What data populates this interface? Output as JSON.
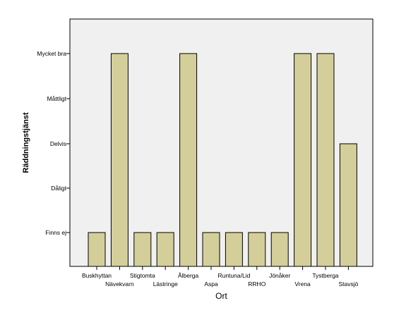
{
  "chart_data": {
    "type": "bar",
    "xlabel": "Ort",
    "ylabel": "Räddningstjänst",
    "y_categories": [
      "Finns ej",
      "Dåligt",
      "Delvis",
      "Måttligt",
      "Mycket bra"
    ],
    "categories": [
      "Buskhyttan",
      "Nävekvarn",
      "Stigtomta",
      "Lästringe",
      "Ålberga",
      "Aspa",
      "Runtuna/Lid",
      "RRHO",
      "Jönåker",
      "Vrena",
      "Tystberga",
      "Stavsjö"
    ],
    "values": [
      "Finns ej",
      "Mycket bra",
      "Finns ej",
      "Finns ej",
      "Mycket bra",
      "Finns ej",
      "Finns ej",
      "Finns ej",
      "Finns ej",
      "Mycket bra",
      "Mycket bra",
      "Delvis"
    ],
    "grid": false,
    "legend": "none",
    "colors": {
      "plot_background": "#f0f0f0",
      "bar_fill": "#d4cf9a",
      "bar_stroke": "#000000",
      "axis": "#000000"
    }
  }
}
